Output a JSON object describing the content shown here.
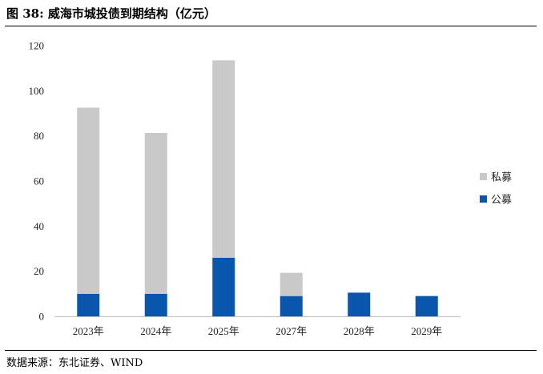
{
  "figure": {
    "title": "图 38:  威海市城投债到期结构（亿元）",
    "source": "数据来源：东北证券、WIND"
  },
  "colors": {
    "public": "#0a56ad",
    "private": "#c9c9c9",
    "axis": "#bfbfbf"
  },
  "chart_data": {
    "type": "bar",
    "stacked": true,
    "categories": [
      "2023年",
      "2024年",
      "2025年",
      "2027年",
      "2028年",
      "2029年"
    ],
    "series": [
      {
        "name": "公募",
        "values": [
          10,
          10,
          26,
          9,
          10.5,
          9
        ]
      },
      {
        "name": "私募",
        "values": [
          82.5,
          71.3,
          87.5,
          10.3,
          0,
          0
        ]
      }
    ],
    "ylim": [
      0,
      120
    ],
    "yticks": [
      0,
      20,
      40,
      60,
      80,
      100,
      120
    ],
    "grid": false,
    "legend_position": "right",
    "legend_order": [
      "私募",
      "公募"
    ]
  }
}
